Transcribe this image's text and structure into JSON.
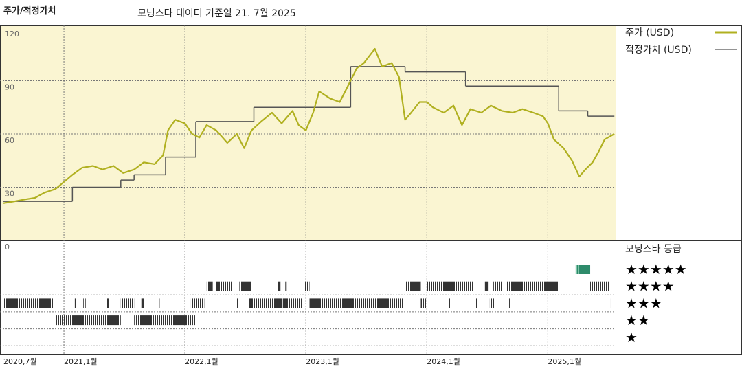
{
  "chart_data": {
    "type": "line",
    "title": "주가/적정가치",
    "subtitle": "모닝스타 데이터 기준일 21. 7월 2025",
    "xlim": [
      2020.5,
      2025.56
    ],
    "xticks": [
      {
        "value": 2020.5,
        "label": "2020,7월"
      },
      {
        "value": 2021.0,
        "label": "2021,1월"
      },
      {
        "value": 2022.0,
        "label": "2022,1월"
      },
      {
        "value": 2023.0,
        "label": "2023,1월"
      },
      {
        "value": 2024.0,
        "label": "2024,1월"
      },
      {
        "value": 2025.0,
        "label": "2025,1월"
      }
    ],
    "ylim": [
      0,
      120
    ],
    "yticks": [
      0,
      30,
      60,
      90,
      120
    ],
    "grid": true,
    "series": [
      {
        "name": "주가 (USD)",
        "color": "#b0b020",
        "x": [
          2020.5,
          2020.59,
          2020.67,
          2020.76,
          2020.84,
          2020.93,
          2021.0,
          2021.07,
          2021.15,
          2021.24,
          2021.32,
          2021.41,
          2021.49,
          2021.58,
          2021.66,
          2021.75,
          2021.82,
          2021.86,
          2021.92,
          2022.0,
          2022.06,
          2022.12,
          2022.18,
          2022.26,
          2022.35,
          2022.43,
          2022.49,
          2022.55,
          2022.63,
          2022.72,
          2022.8,
          2022.89,
          2022.94,
          2023.0,
          2023.06,
          2023.11,
          2023.2,
          2023.28,
          2023.34,
          2023.42,
          2023.48,
          2023.57,
          2023.63,
          2023.71,
          2023.77,
          2023.82,
          2023.87,
          2023.94,
          2024.0,
          2024.05,
          2024.14,
          2024.22,
          2024.29,
          2024.36,
          2024.45,
          2024.53,
          2024.62,
          2024.71,
          2024.79,
          2024.88,
          2024.96,
          2025.0,
          2025.05,
          2025.13,
          2025.2,
          2025.26,
          2025.31,
          2025.37,
          2025.42,
          2025.47,
          2025.55
        ],
        "values": [
          21,
          22,
          23,
          24,
          27,
          29,
          33,
          37,
          41,
          42,
          40,
          42,
          38,
          40,
          44,
          43,
          48,
          62,
          68,
          66,
          60,
          58,
          65,
          62,
          55,
          60,
          52,
          62,
          67,
          72,
          66,
          73,
          65,
          62,
          72,
          84,
          80,
          78,
          86,
          97,
          100,
          108,
          98,
          100,
          92,
          68,
          72,
          78,
          78,
          75,
          72,
          76,
          65,
          74,
          72,
          76,
          73,
          72,
          74,
          72,
          70,
          66,
          57,
          52,
          45,
          36,
          40,
          44,
          50,
          57,
          60
        ]
      },
      {
        "name": "적정가치 (USD)",
        "color": "#555555",
        "step": true,
        "x": [
          2020.5,
          2021.07,
          2021.47,
          2021.58,
          2021.84,
          2022.09,
          2022.57,
          2023.37,
          2023.82,
          2024.32,
          2025.09,
          2025.33,
          2025.55
        ],
        "values": [
          22,
          30,
          34,
          37,
          47,
          67,
          75,
          98,
          95,
          87,
          73,
          70,
          70
        ]
      }
    ],
    "rating_title": "모닝스타 등급",
    "rating_labels": [
      "★★★★★",
      "★★★★",
      "★★★",
      "★★",
      "★"
    ],
    "rating_colors": {
      "default": "#333333",
      "top": "#2e8b6b"
    },
    "rating_segments": [
      {
        "start": 2020.5,
        "end": 2020.91,
        "stars": 3
      },
      {
        "start": 2020.93,
        "end": 2021.47,
        "stars": 2
      },
      {
        "start": 2021.09,
        "end": 2021.1,
        "stars": 3
      },
      {
        "start": 2021.16,
        "end": 2021.18,
        "stars": 3
      },
      {
        "start": 2021.35,
        "end": 2021.37,
        "stars": 3
      },
      {
        "start": 2021.47,
        "end": 2021.58,
        "stars": 3
      },
      {
        "start": 2021.58,
        "end": 2022.09,
        "stars": 2
      },
      {
        "start": 2021.64,
        "end": 2021.66,
        "stars": 3
      },
      {
        "start": 2021.78,
        "end": 2021.79,
        "stars": 3
      },
      {
        "start": 2022.05,
        "end": 2022.16,
        "stars": 3
      },
      {
        "start": 2022.18,
        "end": 2022.23,
        "stars": 4
      },
      {
        "start": 2022.26,
        "end": 2022.39,
        "stars": 4
      },
      {
        "start": 2022.43,
        "end": 2022.44,
        "stars": 3
      },
      {
        "start": 2022.45,
        "end": 2022.55,
        "stars": 4
      },
      {
        "start": 2022.53,
        "end": 2022.8,
        "stars": 3
      },
      {
        "start": 2022.77,
        "end": 2022.79,
        "stars": 4
      },
      {
        "start": 2022.81,
        "end": 2022.97,
        "stars": 3
      },
      {
        "start": 2022.83,
        "end": 2022.84,
        "stars": 4
      },
      {
        "start": 2022.99,
        "end": 2023.03,
        "stars": 4
      },
      {
        "start": 2023.03,
        "end": 2023.81,
        "stars": 3
      },
      {
        "start": 2023.82,
        "end": 2023.95,
        "stars": 4
      },
      {
        "start": 2023.95,
        "end": 2024.0,
        "stars": 3
      },
      {
        "start": 2024.0,
        "end": 2024.38,
        "stars": 4
      },
      {
        "start": 2024.18,
        "end": 2024.19,
        "stars": 3
      },
      {
        "start": 2024.4,
        "end": 2024.42,
        "stars": 3
      },
      {
        "start": 2024.48,
        "end": 2024.51,
        "stars": 4
      },
      {
        "start": 2024.52,
        "end": 2024.56,
        "stars": 3
      },
      {
        "start": 2024.55,
        "end": 2024.62,
        "stars": 4
      },
      {
        "start": 2024.66,
        "end": 2025.09,
        "stars": 4
      },
      {
        "start": 2024.68,
        "end": 2024.69,
        "stars": 3
      },
      {
        "start": 2025.23,
        "end": 2025.35,
        "stars": 5
      },
      {
        "start": 2025.35,
        "end": 2025.51,
        "stars": 4
      },
      {
        "start": 2025.52,
        "end": 2025.53,
        "stars": 3
      }
    ]
  }
}
